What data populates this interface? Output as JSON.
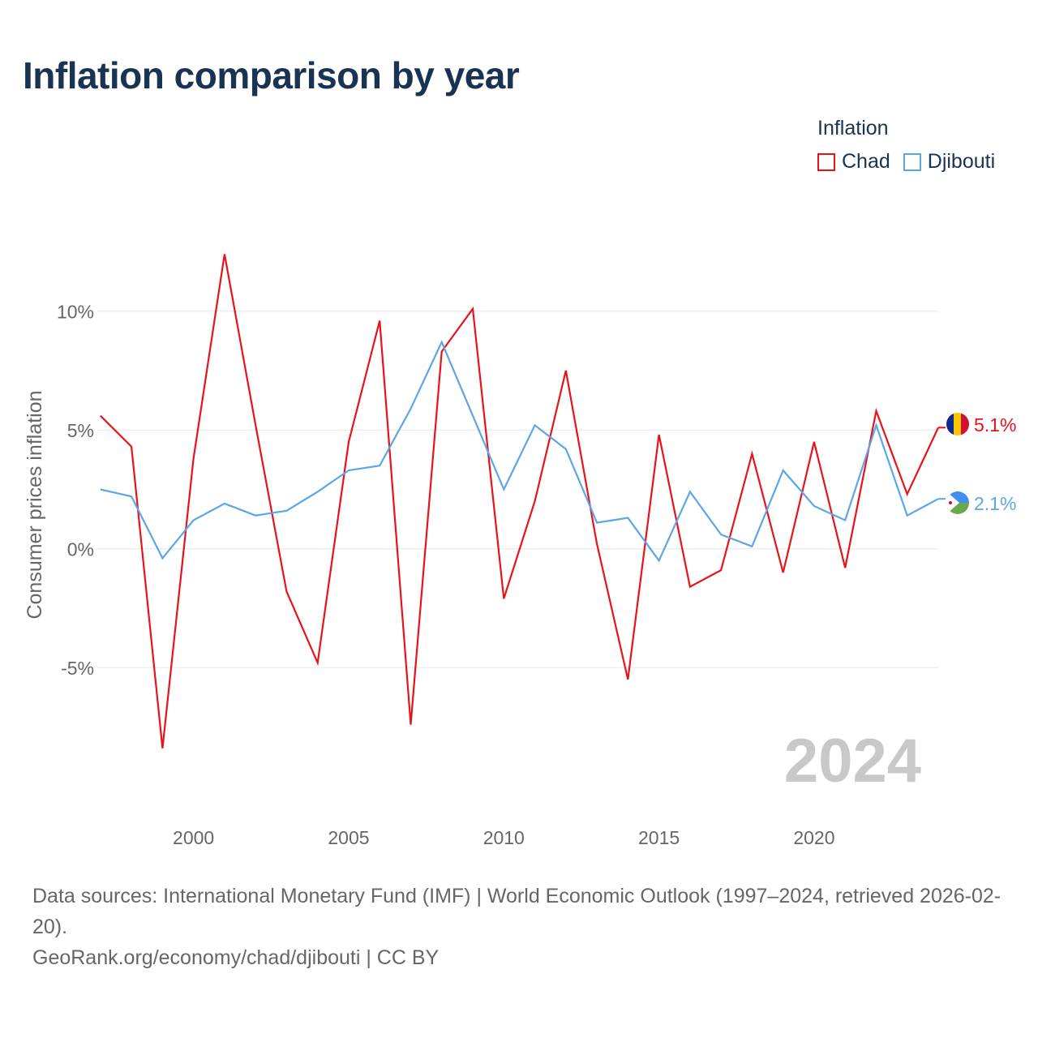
{
  "title": "Inflation comparison by year",
  "legend": {
    "title": "Inflation",
    "items": [
      {
        "label": "Chad",
        "color": "#e8121a"
      },
      {
        "label": "Djibouti",
        "color": "#5ba6e6"
      }
    ]
  },
  "chart_data": {
    "type": "line",
    "title": "Inflation comparison by year",
    "xlabel": "",
    "ylabel": "Consumer prices inflation",
    "x": [
      1997,
      1998,
      1999,
      2000,
      2001,
      2002,
      2003,
      2004,
      2005,
      2006,
      2007,
      2008,
      2009,
      2010,
      2011,
      2012,
      2013,
      2014,
      2015,
      2016,
      2017,
      2018,
      2019,
      2020,
      2021,
      2022,
      2023,
      2024
    ],
    "xlim": [
      1996.9,
      2024.0
    ],
    "ylim": [
      -9.5,
      13.2
    ],
    "yticks": [
      -5,
      0,
      5,
      10
    ],
    "ytick_labels": [
      "-5%",
      "0%",
      "5%",
      "10%"
    ],
    "xticks": [
      2000,
      2005,
      2010,
      2015,
      2020
    ],
    "xtick_labels": [
      "2000",
      "2005",
      "2010",
      "2015",
      "2020"
    ],
    "grid": true,
    "series": [
      {
        "name": "Chad",
        "color": "#e8121a",
        "values": [
          5.6,
          4.3,
          -8.4,
          3.8,
          12.4,
          5.2,
          -1.8,
          -4.8,
          4.5,
          9.6,
          -7.4,
          8.3,
          10.1,
          -2.1,
          2.0,
          7.5,
          0.2,
          -5.5,
          4.8,
          -1.6,
          -0.9,
          4.0,
          -1.0,
          4.5,
          -0.8,
          5.8,
          2.3,
          5.1
        ],
        "end_label": "5.1%"
      },
      {
        "name": "Djibouti",
        "color": "#5ba6e6",
        "values": [
          2.5,
          2.2,
          -0.4,
          1.2,
          1.9,
          1.4,
          1.6,
          2.4,
          3.3,
          3.5,
          5.9,
          8.7,
          5.6,
          2.5,
          5.2,
          4.2,
          1.1,
          1.3,
          -0.5,
          2.4,
          0.6,
          0.1,
          3.3,
          1.8,
          1.2,
          5.2,
          1.4,
          2.1
        ],
        "end_label": "2.1%"
      }
    ],
    "year_watermark": "2024"
  },
  "footer": {
    "sources": "Data sources: International Monetary Fund (IMF) | World Economic Outlook (1997–2024, retrieved 2026-02-20).",
    "credit": "GeoRank.org/economy/chad/djibouti | CC BY"
  }
}
